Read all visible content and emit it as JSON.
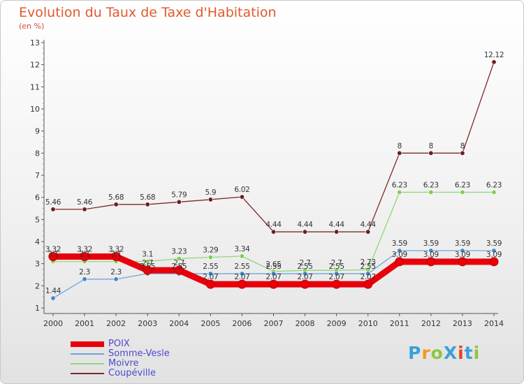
{
  "title": "Evolution du Taux de Taxe d'Habitation",
  "subtitle": "(en %)",
  "logo": {
    "text": "ProXiti",
    "colors": [
      "#3aa0d8",
      "#f59a1a",
      "#8ec63f",
      "#3aa0d8",
      "#e8431f",
      "#3aa0d8",
      "#8ec63f"
    ]
  },
  "chart_data": {
    "type": "line",
    "categories": [
      "2000",
      "2001",
      "2002",
      "2003",
      "2004",
      "2005",
      "2006",
      "2007",
      "2008",
      "2009",
      "2010",
      "2011",
      "2012",
      "2013",
      "2014"
    ],
    "ylim": [
      1,
      13
    ],
    "yticks": [
      1,
      2,
      3,
      4,
      5,
      6,
      7,
      8,
      9,
      10,
      11,
      12,
      13
    ],
    "grid": false,
    "legend_position": "bottom-left",
    "series": [
      {
        "name": "POIX",
        "color": "#e8000b",
        "width": 9,
        "values": [
          3.32,
          3.32,
          3.32,
          2.7,
          2.7,
          2.07,
          2.07,
          2.07,
          2.07,
          2.07,
          2.07,
          3.09,
          3.09,
          3.09,
          3.09
        ],
        "labels": [
          "3.32",
          "3.32",
          "3.32",
          "2.7",
          "2.7",
          "2.07",
          "2.07",
          "2.07",
          "2.07",
          "2.07",
          "2.07",
          "3.09",
          "3.09",
          "3.09",
          "3.09"
        ]
      },
      {
        "name": "Somme-Vesle",
        "color": "#6fa6d8",
        "width": 1.3,
        "values": [
          1.44,
          2.3,
          2.3,
          2.55,
          2.55,
          2.55,
          2.55,
          2.55,
          2.55,
          2.55,
          2.55,
          3.59,
          3.59,
          3.59,
          3.59
        ],
        "labels": [
          "1.44",
          "2.3",
          "2.3",
          "2.55",
          "2.55",
          "2.55",
          "2.55",
          "2.55",
          "2.55",
          "2.55",
          "2.55",
          "3.59",
          "3.59",
          "3.59",
          "3.59"
        ]
      },
      {
        "name": "Moivre",
        "color": "#8fd67a",
        "width": 1.3,
        "values": [
          3.1,
          3.1,
          3.1,
          3.1,
          3.23,
          3.29,
          3.34,
          2.65,
          2.7,
          2.7,
          2.73,
          6.23,
          6.23,
          6.23,
          6.23
        ],
        "labels": [
          "3.1",
          "3.1",
          "3.1",
          "3.1",
          "3.23",
          "3.29",
          "3.34",
          "2.65",
          "2.7",
          "2.7",
          "2.73",
          "6.23",
          "6.23",
          "6.23",
          "6.23"
        ]
      },
      {
        "name": "Coupéville",
        "color": "#7a2a2a",
        "width": 1.3,
        "values": [
          5.46,
          5.46,
          5.68,
          5.68,
          5.79,
          5.9,
          6.02,
          4.44,
          4.44,
          4.44,
          4.44,
          8,
          8,
          8,
          12.12
        ],
        "labels": [
          "5.46",
          "5.46",
          "5.68",
          "5.68",
          "5.79",
          "5.9",
          "6.02",
          "4.44",
          "4.44",
          "4.44",
          "4.44",
          "8",
          "8",
          "8",
          "12.12"
        ]
      }
    ]
  },
  "marker_colors": {
    "POIX": "#e8000b",
    "Somme-Vesle": "#3f86c8",
    "Moivre": "#7dd04e",
    "Coupéville": "#6b1f1f"
  }
}
